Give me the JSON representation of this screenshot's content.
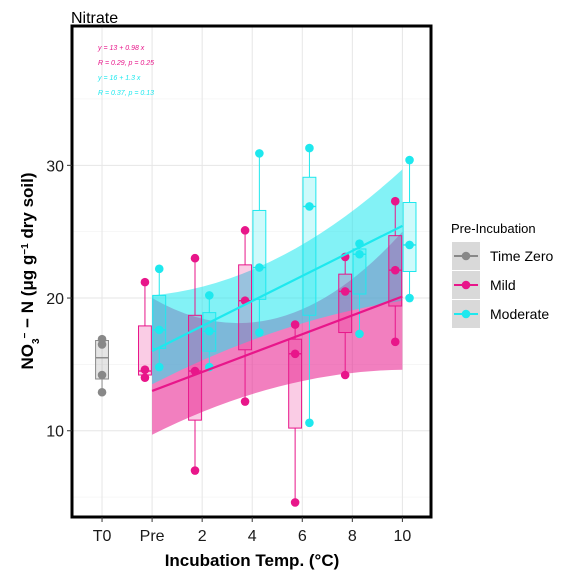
{
  "chart_data": {
    "type": "box",
    "title": "Nitrate",
    "xlabel": "Incubation Temp. (°C)",
    "ylabel": "NO3− − N (μg g−1 dry soil)",
    "ylabel_parts": {
      "main": "NO",
      "sub": "3",
      "sup1": "−",
      "rest": " − N (μg g",
      "sup2": "−1",
      "end": " dry soil)"
    },
    "x_tick_labels": [
      {
        "label": "T0",
        "x": -2
      },
      {
        "label": "Pre",
        "x": -0.25
      },
      {
        "label": "2",
        "x": 1.5
      },
      {
        "label": "4",
        "x": 3.25
      },
      {
        "label": "6",
        "x": 5
      },
      {
        "label": "8",
        "x": 6.75
      },
      {
        "label": "10",
        "x": 8.5
      }
    ],
    "xlim": [
      -3.05,
      9.5
    ],
    "ylim": [
      3.5,
      40.5
    ],
    "yticks": [
      10,
      20,
      30
    ],
    "grid": true,
    "legend": {
      "title": "Pre-Incubation",
      "position": "right",
      "entries": [
        {
          "name": "Time Zero",
          "color": "#888888"
        },
        {
          "name": "Mild",
          "color": "#e8168a"
        },
        {
          "name": "Moderate",
          "color": "#1ee8ee"
        }
      ]
    },
    "colors": {
      "Time Zero": "#888888",
      "Mild": "#e8168a",
      "Moderate": "#1ee8ee"
    },
    "annotations": [
      {
        "text": "y = 13 + 0.98 x",
        "series": "Mild"
      },
      {
        "text": "R = 0.29, p = 0.25",
        "series": "Mild"
      },
      {
        "text": "y = 16 + 1.3 x",
        "series": "Moderate"
      },
      {
        "text": "R = 0.37, p = 0.13",
        "series": "Moderate"
      }
    ],
    "regressions": [
      {
        "series": "Mild",
        "intercept": 13,
        "slope": 0.98,
        "x_range": [
          -0.25,
          8.5
        ],
        "ci_lower": [
          9.7,
          13.3,
          14.6
        ],
        "ci_upper": [
          20.0,
          18.5,
          25.0
        ]
      },
      {
        "series": "Moderate",
        "intercept": 16,
        "slope": 1.3,
        "x_range": [
          -0.25,
          8.5
        ],
        "ci_lower": [
          13.5,
          17.5,
          19.8
        ],
        "ci_upper": [
          20.2,
          23.0,
          29.7
        ]
      }
    ],
    "boxes": [
      {
        "series": "Time Zero",
        "x": -2.0,
        "min": 12.9,
        "q1": 13.9,
        "median": 15.5,
        "q3": 16.8,
        "max": 17.0,
        "points": [
          12.9,
          14.2,
          16.5,
          16.9
        ]
      },
      {
        "series": "Mild",
        "x": -0.5,
        "min": 14.0,
        "q1": 14.2,
        "median": 14.5,
        "q3": 17.9,
        "max": 21.2,
        "points": [
          21.2,
          14.0,
          14.6
        ]
      },
      {
        "series": "Moderate",
        "x": 0.0,
        "min": 14.8,
        "q1": 16.2,
        "median": 17.6,
        "q3": 20.2,
        "max": 22.2,
        "points": [
          22.2,
          17.6,
          14.8
        ]
      },
      {
        "series": "Mild",
        "x": 1.25,
        "min": 7.0,
        "q1": 10.8,
        "median": 14.5,
        "q3": 18.7,
        "max": 23.0,
        "points": [
          23.0,
          14.5,
          7.0
        ]
      },
      {
        "series": "Moderate",
        "x": 1.75,
        "min": 14.8,
        "q1": 16.0,
        "median": 17.5,
        "q3": 18.9,
        "max": 20.2,
        "points": [
          20.2,
          17.5,
          14.8
        ]
      },
      {
        "series": "Mild",
        "x": 3.0,
        "min": 12.2,
        "q1": 16.1,
        "median": 19.8,
        "q3": 22.5,
        "max": 25.1,
        "points": [
          25.1,
          19.8,
          12.2
        ]
      },
      {
        "series": "Moderate",
        "x": 3.5,
        "min": 17.4,
        "q1": 19.9,
        "median": 22.3,
        "q3": 26.6,
        "max": 30.9,
        "points": [
          30.9,
          22.3,
          17.4
        ]
      },
      {
        "series": "Mild",
        "x": 4.75,
        "min": 4.6,
        "q1": 10.2,
        "median": 15.8,
        "q3": 16.9,
        "max": 18.0,
        "points": [
          18.0,
          15.8,
          4.6
        ]
      },
      {
        "series": "Moderate",
        "x": 5.25,
        "min": 10.6,
        "q1": 18.7,
        "median": 26.9,
        "q3": 29.1,
        "max": 31.3,
        "points": [
          31.3,
          26.9,
          10.6
        ]
      },
      {
        "series": "Mild",
        "x": 6.5,
        "min": 14.2,
        "q1": 17.4,
        "median": 20.5,
        "q3": 21.8,
        "max": 23.1,
        "points": [
          23.1,
          20.5,
          14.2
        ]
      },
      {
        "series": "Moderate",
        "x": 7.0,
        "min": 17.3,
        "q1": 20.3,
        "median": 23.3,
        "q3": 23.7,
        "max": 24.1,
        "points": [
          24.1,
          23.3,
          17.3
        ]
      },
      {
        "series": "Mild",
        "x": 8.25,
        "min": 16.7,
        "q1": 19.4,
        "median": 22.1,
        "q3": 24.7,
        "max": 27.3,
        "points": [
          27.3,
          22.1,
          16.7
        ]
      },
      {
        "series": "Moderate",
        "x": 8.75,
        "min": 20.0,
        "q1": 22.0,
        "median": 24.0,
        "q3": 27.2,
        "max": 30.4,
        "points": [
          30.4,
          24.0,
          20.0
        ]
      }
    ]
  }
}
